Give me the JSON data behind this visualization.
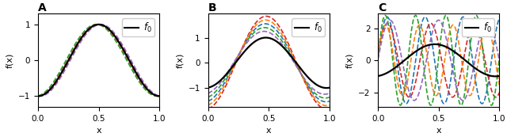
{
  "title_A": "A",
  "title_B": "B",
  "title_C": "C",
  "legend_label": "$f_0$",
  "xlabel": "x",
  "ylabel": "f(x)",
  "x_ticks": [
    0.0,
    0.5,
    1.0
  ],
  "colors": [
    "#1f77b4",
    "#d62728",
    "#2ca02c",
    "#ff7f0e",
    "#9467bd"
  ],
  "f0_color": "black",
  "panel_A": {
    "f0_amp": 1.0,
    "f0_freq": 1.0,
    "f0_phase": 0.0,
    "amps": [
      1.0,
      1.0,
      1.0,
      1.0,
      1.0
    ],
    "freqs": [
      1.0,
      1.0,
      1.0,
      1.0,
      1.0
    ],
    "phases": [
      0.08,
      -0.05,
      0.12,
      0.04,
      -0.1
    ],
    "ylim": [
      -1.3,
      1.3
    ],
    "yticks": [
      -1,
      0,
      1
    ]
  },
  "panel_B": {
    "f0_amp": 1.0,
    "f0_freq": 1.0,
    "f0_phase": 0.15,
    "amps": [
      1.55,
      1.85,
      1.4,
      1.7,
      1.25
    ],
    "freqs": [
      1.0,
      1.0,
      1.0,
      1.0,
      1.0
    ],
    "phases": [
      0.18,
      0.13,
      0.22,
      0.16,
      0.25
    ],
    "ylim": [
      -1.75,
      1.95
    ],
    "yticks": [
      -1,
      0,
      1
    ]
  },
  "panel_C": {
    "f0_amp": 1.0,
    "f0_freq": 1.0,
    "f0_phase": 0.2,
    "amps": [
      2.7,
      2.3,
      2.8,
      2.2,
      2.5
    ],
    "freqs": [
      3.2,
      2.8,
      4.0,
      3.6,
      2.5
    ],
    "phases": [
      0.05,
      0.2,
      0.08,
      0.15,
      0.02
    ],
    "ylim": [
      -2.9,
      2.9
    ],
    "yticks": [
      -2,
      0,
      2
    ]
  },
  "lw": 1.2,
  "lw_f0": 1.6
}
